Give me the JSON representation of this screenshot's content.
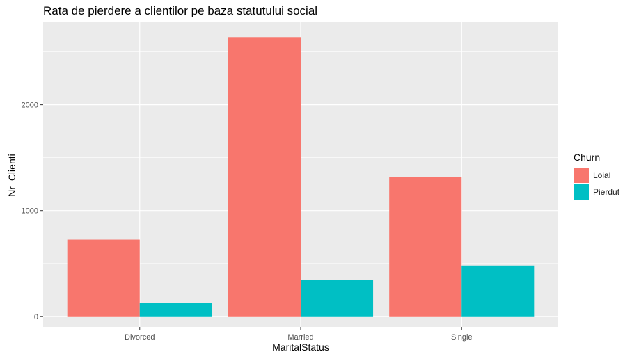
{
  "chart_data": {
    "type": "bar",
    "title": "Rata de pierdere a clientilor pe baza statutului social",
    "xlabel": "MaritalStatus",
    "ylabel": "Nr_Clienti",
    "categories": [
      "Divorced",
      "Married",
      "Single"
    ],
    "series": [
      {
        "name": "Loial",
        "color": "#F8766D",
        "values": [
          725,
          2640,
          1320
        ]
      },
      {
        "name": "Pierdut",
        "color": "#00BFC4",
        "values": [
          125,
          345,
          480
        ]
      }
    ],
    "ylim": [
      -100,
      2780
    ],
    "yticks": [
      0,
      1000,
      2000
    ],
    "legend_title": "Churn",
    "legend_position": "right",
    "grid": true,
    "panel_background": "#EBEBEB"
  }
}
